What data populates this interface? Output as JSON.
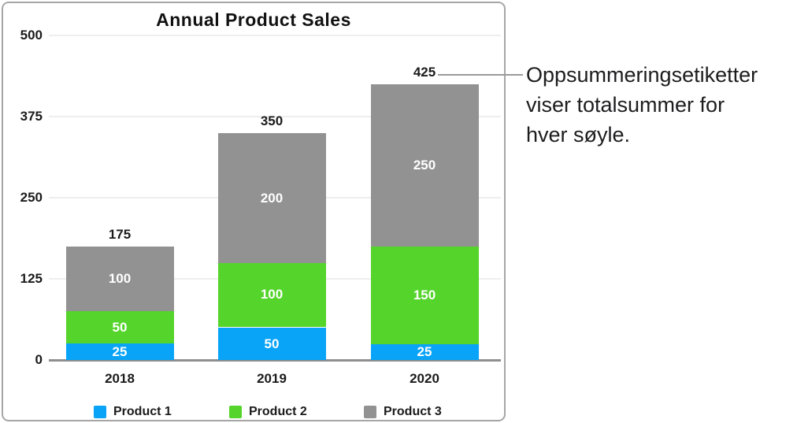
{
  "chart_data": {
    "type": "bar",
    "stacked": true,
    "title": "Annual Product Sales",
    "categories": [
      "2018",
      "2019",
      "2020"
    ],
    "series": [
      {
        "name": "Product 1",
        "color": "#09a4f7",
        "values": [
          25,
          50,
          25
        ]
      },
      {
        "name": "Product 2",
        "color": "#55d42c",
        "values": [
          50,
          100,
          150
        ]
      },
      {
        "name": "Product 3",
        "color": "#929292",
        "values": [
          100,
          200,
          250
        ]
      }
    ],
    "totals": [
      175,
      350,
      425
    ],
    "y_ticks": [
      0,
      125,
      250,
      375,
      500
    ],
    "ylim": [
      0,
      500
    ],
    "grid": true,
    "legend_position": "bottom"
  },
  "colors": {
    "axis_line": "#8e8e8e",
    "gridline": "#eeeeee",
    "panel_border": "#a6a6a6",
    "leader_line": "#9b9b9b",
    "label_dark": "#1b1b1b",
    "label_light": "#ffffff"
  },
  "callout": {
    "lines": [
      "Oppsummeringsetiketter",
      "viser totalsummer for",
      "hver søyle."
    ]
  }
}
